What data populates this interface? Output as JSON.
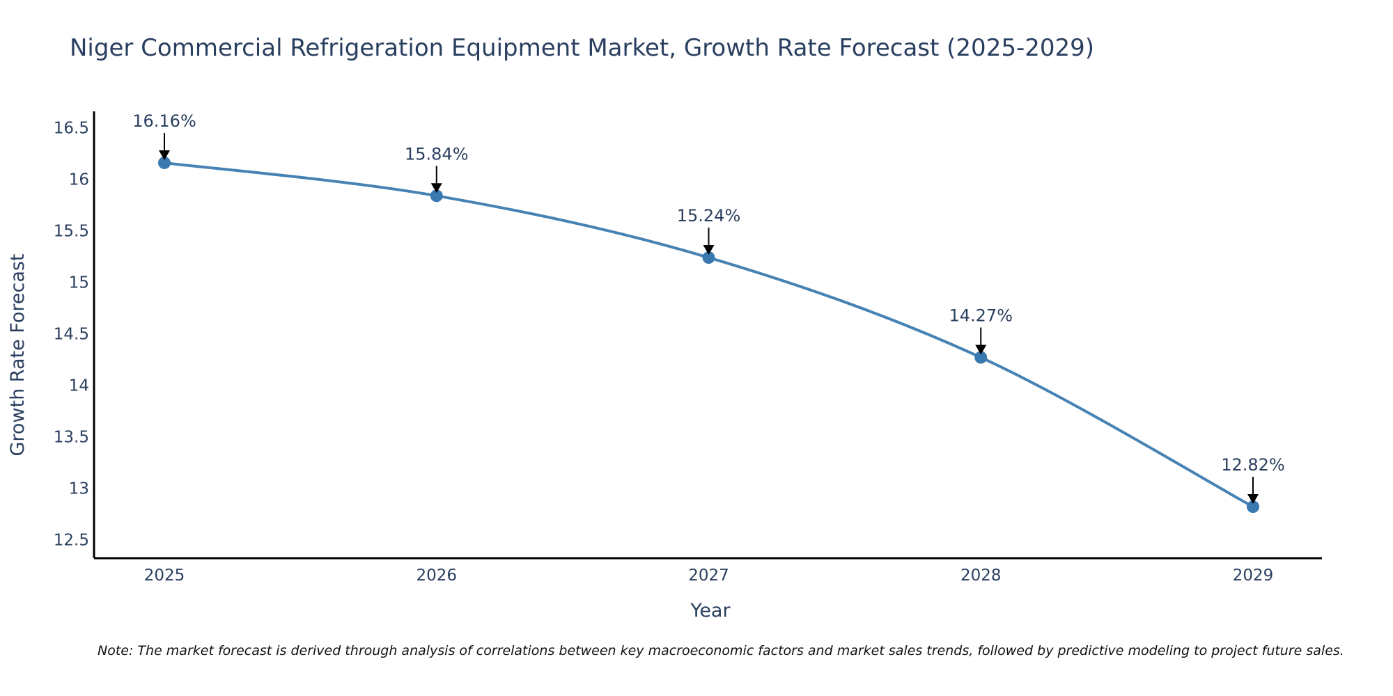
{
  "colors": {
    "line": "#4682b4",
    "marker": "#3a78b0",
    "text": "#2a3f5f",
    "axis": "#000000",
    "arrow": "#000000"
  },
  "chart_data": {
    "type": "line",
    "title": "Niger Commercial Refrigeration Equipment Market, Growth Rate Forecast (2025-2029)",
    "xlabel": "Year",
    "ylabel": "Growth Rate Forecast",
    "categories": [
      "2025",
      "2026",
      "2027",
      "2028",
      "2029"
    ],
    "series": [
      {
        "name": "Growth Rate Forecast",
        "values": [
          16.16,
          15.84,
          15.24,
          14.27,
          12.82
        ]
      }
    ],
    "data_labels": [
      "16.16%",
      "15.84%",
      "15.24%",
      "14.27%",
      "12.82%"
    ],
    "yticks": [
      12.5,
      13,
      13.5,
      14,
      14.5,
      15,
      15.5,
      16,
      16.5
    ],
    "ytick_labels": [
      "12.5",
      "13",
      "13.5",
      "14",
      "14.5",
      "15",
      "15.5",
      "16",
      "16.5"
    ],
    "ylim": [
      12.32,
      16.66
    ],
    "grid": false,
    "legend": "none",
    "line_shape": "spline"
  },
  "note": "Note: The market forecast is derived through analysis of correlations between key macroeconomic factors and market sales trends, followed by predictive modeling to project future sales."
}
